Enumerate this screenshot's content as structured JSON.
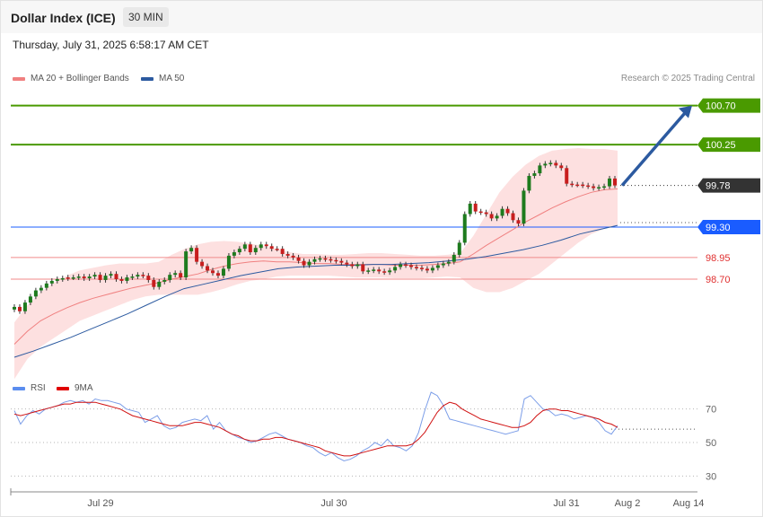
{
  "header": {
    "title": "Dollar Index (ICE)",
    "timeframe": "30 MIN",
    "timestamp": "Thursday, July 31, 2025 6:58:17 AM CET"
  },
  "legend_main": [
    {
      "label": "MA 20 + Bollinger Bands",
      "color": "#f08080"
    },
    {
      "label": "MA 50",
      "color": "#2c5aa0"
    }
  ],
  "legend_rsi": [
    {
      "label": "RSI",
      "color": "#5b8def"
    },
    {
      "label": "9MA",
      "color": "#e00000"
    }
  ],
  "credit": "Research © 2025 Trading Central",
  "chart_data": [
    {
      "type": "candlestick",
      "ylim": [
        97.8,
        100.8
      ],
      "x_ticks": [
        "Jul 29",
        "Jul 30",
        "Jul 31",
        "Aug 2",
        "Aug 14"
      ],
      "levels": [
        {
          "value": 100.7,
          "label": "100.70",
          "color": "#4a9a00",
          "kind": "resistance"
        },
        {
          "value": 100.25,
          "label": "100.25",
          "color": "#4a9a00",
          "kind": "resistance"
        },
        {
          "value": 99.78,
          "label": "99.78",
          "color": "#333333",
          "kind": "last-price"
        },
        {
          "value": 99.3,
          "label": "99.30",
          "color": "#1a5cff",
          "kind": "pivot"
        },
        {
          "value": 98.95,
          "label": "98.95",
          "color": "#e03030",
          "kind": "support"
        },
        {
          "value": 98.7,
          "label": "98.70",
          "color": "#e03030",
          "kind": "support"
        }
      ],
      "close": [
        98.38,
        98.33,
        98.43,
        98.5,
        98.57,
        98.6,
        98.65,
        98.68,
        98.7,
        98.71,
        98.72,
        98.72,
        98.73,
        98.71,
        98.73,
        98.75,
        98.69,
        98.74,
        98.76,
        98.7,
        98.68,
        98.72,
        98.73,
        98.75,
        98.74,
        98.69,
        98.61,
        98.67,
        98.69,
        98.75,
        98.77,
        98.72,
        99.02,
        99.06,
        98.9,
        98.85,
        98.8,
        98.77,
        98.74,
        98.82,
        98.97,
        99.01,
        99.05,
        99.1,
        99.01,
        99.06,
        99.1,
        99.08,
        99.05,
        99.05,
        98.99,
        98.97,
        98.95,
        98.91,
        98.86,
        98.9,
        98.93,
        98.94,
        98.93,
        98.92,
        98.91,
        98.89,
        98.87,
        98.85,
        98.87,
        98.79,
        98.8,
        98.81,
        98.79,
        98.78,
        98.8,
        98.84,
        98.87,
        98.86,
        98.84,
        98.83,
        98.82,
        98.8,
        98.83,
        98.86,
        98.88,
        98.9,
        98.98,
        99.12,
        99.45,
        99.57,
        99.48,
        99.47,
        99.45,
        99.4,
        99.43,
        99.51,
        99.46,
        99.38,
        99.34,
        99.72,
        99.89,
        99.92,
        100.01,
        100.03,
        100.04,
        100.01,
        99.98,
        99.8,
        99.79,
        99.79,
        99.78,
        99.77,
        99.75,
        99.76,
        99.77,
        99.86,
        99.78
      ],
      "up": [
        1,
        0,
        1,
        1,
        1,
        1,
        1,
        1,
        1,
        1,
        0,
        1,
        1,
        0,
        1,
        1,
        0,
        1,
        1,
        0,
        0,
        1,
        1,
        1,
        0,
        0,
        0,
        1,
        1,
        1,
        1,
        0,
        1,
        1,
        0,
        0,
        0,
        0,
        0,
        1,
        1,
        1,
        1,
        1,
        0,
        1,
        1,
        0,
        0,
        0,
        0,
        0,
        0,
        0,
        0,
        1,
        1,
        1,
        0,
        0,
        0,
        0,
        0,
        0,
        1,
        0,
        1,
        1,
        0,
        0,
        1,
        1,
        1,
        0,
        0,
        0,
        0,
        0,
        1,
        1,
        1,
        1,
        1,
        1,
        1,
        1,
        0,
        0,
        0,
        0,
        1,
        1,
        0,
        0,
        0,
        1,
        1,
        1,
        1,
        1,
        1,
        0,
        0,
        0,
        0,
        0,
        0,
        0,
        0,
        1,
        1,
        1,
        0
      ],
      "ma20": [
        97.95,
        98.1,
        98.22,
        98.3,
        98.37,
        98.43,
        98.48,
        98.52,
        98.56,
        98.6,
        98.63,
        98.66,
        98.7,
        98.73,
        98.76,
        98.81,
        98.85,
        98.88,
        98.9,
        98.91,
        98.9,
        98.9,
        98.89,
        98.88,
        98.88,
        98.87,
        98.87,
        98.87,
        98.87,
        98.86,
        98.86,
        98.86,
        98.87,
        98.88,
        98.9,
        98.99,
        99.09,
        99.18,
        99.27,
        99.36,
        99.44,
        99.52,
        99.59,
        99.65,
        99.7,
        99.73,
        99.74
      ],
      "ma50": [
        97.8,
        97.87,
        97.95,
        98.03,
        98.12,
        98.21,
        98.3,
        98.4,
        98.5,
        98.59,
        98.64,
        98.69,
        98.74,
        98.78,
        98.82,
        98.84,
        98.85,
        98.86,
        98.86,
        98.87,
        98.87,
        98.88,
        98.89,
        98.91,
        98.93,
        98.96,
        99.0,
        99.04,
        99.09,
        99.15,
        99.22,
        99.27,
        99.32
      ],
      "bb_upper": [
        98.2,
        98.4,
        98.55,
        98.66,
        98.74,
        98.8,
        98.83,
        98.86,
        98.88,
        98.88,
        98.88,
        98.9,
        98.98,
        99.05,
        99.1,
        99.13,
        99.14,
        99.13,
        99.11,
        99.08,
        99.05,
        99.01,
        98.99,
        98.99,
        98.98,
        98.98,
        98.99,
        99.0,
        99.0,
        98.99,
        98.98,
        98.97,
        98.97,
        98.98,
        99.0,
        99.2,
        99.45,
        99.7,
        99.88,
        100.02,
        100.12,
        100.18,
        100.2,
        100.21,
        100.2,
        100.2,
        100.18
      ],
      "bb_lower": [
        97.55,
        97.78,
        97.92,
        98.02,
        98.12,
        98.22,
        98.28,
        98.34,
        98.4,
        98.46,
        98.5,
        98.52,
        98.52,
        98.52,
        98.52,
        98.55,
        98.59,
        98.64,
        98.68,
        98.7,
        98.73,
        98.74,
        98.74,
        98.74,
        98.74,
        98.73,
        98.72,
        98.72,
        98.72,
        98.71,
        98.71,
        98.71,
        98.72,
        98.73,
        98.72,
        98.6,
        98.55,
        98.55,
        98.6,
        98.68,
        98.76,
        98.88,
        99.0,
        99.12,
        99.22,
        99.28,
        99.32
      ],
      "target_arrow_to": 100.7
    },
    {
      "type": "line",
      "name_keys": [
        "RSI",
        "9MA"
      ],
      "ylim": [
        20,
        80
      ],
      "y_ticks": [
        70,
        50,
        30
      ],
      "rsi": [
        69,
        61,
        66,
        69,
        67,
        70,
        71,
        72,
        74,
        75,
        74,
        75,
        73,
        76,
        75,
        75,
        74,
        73,
        70,
        69,
        68,
        62,
        64,
        66,
        60,
        58,
        59,
        62,
        63,
        64,
        63,
        66,
        58,
        62,
        57,
        55,
        53,
        52,
        50,
        51,
        53,
        55,
        56,
        54,
        52,
        51,
        50,
        48,
        47,
        44,
        42,
        44,
        41,
        39,
        40,
        42,
        45,
        47,
        50,
        48,
        52,
        48,
        47,
        45,
        48,
        56,
        69,
        80,
        78,
        72,
        64,
        63,
        62,
        61,
        60,
        59,
        58,
        57,
        56,
        55,
        56,
        57,
        76,
        78,
        74,
        70,
        69,
        66,
        67,
        66,
        64,
        65,
        66,
        65,
        62,
        57,
        55,
        60
      ],
      "ma9": [
        67,
        66,
        67,
        68,
        69,
        70,
        71,
        72,
        73,
        73,
        74,
        74,
        74,
        74,
        73,
        72,
        71,
        70,
        68,
        66,
        65,
        64,
        63,
        62,
        61,
        60,
        60,
        60,
        61,
        62,
        62,
        61,
        60,
        59,
        57,
        55,
        54,
        52,
        51,
        51,
        52,
        52,
        53,
        53,
        52,
        51,
        50,
        49,
        48,
        47,
        45,
        44,
        43,
        42,
        42,
        43,
        44,
        45,
        46,
        47,
        48,
        48,
        48,
        48,
        49,
        52,
        56,
        62,
        68,
        72,
        74,
        73,
        70,
        68,
        66,
        64,
        63,
        62,
        61,
        60,
        59,
        59,
        60,
        62,
        66,
        69,
        70,
        70,
        69,
        69,
        68,
        67,
        66,
        65,
        64,
        62,
        61,
        59
      ]
    }
  ]
}
